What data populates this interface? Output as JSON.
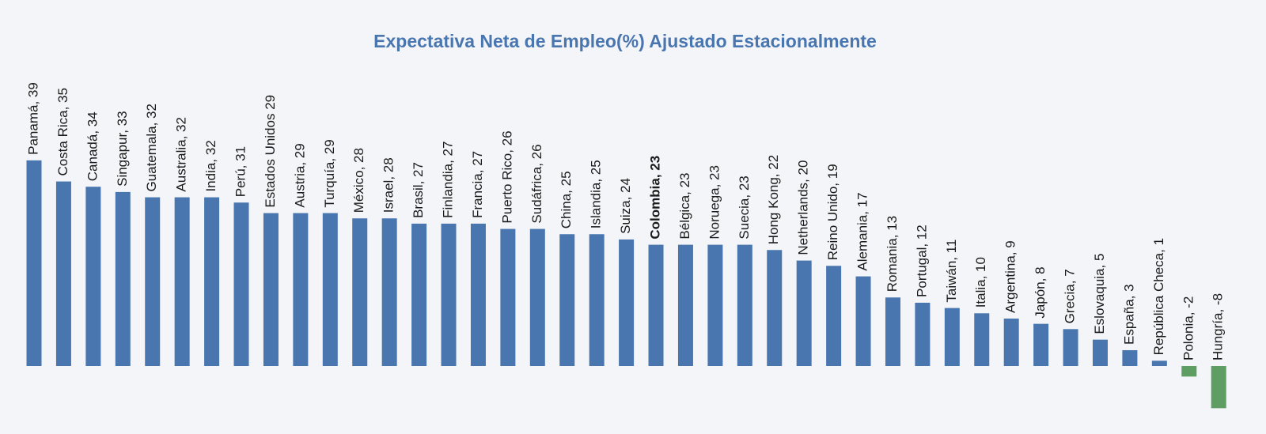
{
  "chart_data": {
    "type": "bar",
    "title": "Expectativa Neta de Empleo(%) Ajustado Estacionalmente",
    "values": [
      39,
      35,
      34,
      33,
      32,
      32,
      32,
      31,
      29,
      29,
      29,
      28,
      28,
      27,
      27,
      27,
      26,
      26,
      25,
      25,
      24,
      23,
      23,
      23,
      23,
      22,
      20,
      19,
      17,
      13,
      12,
      11,
      10,
      9,
      8,
      7,
      5,
      3,
      1,
      -2,
      -8
    ],
    "value_labels": [
      "Panamá, 39",
      "Costa Rica, 35",
      "Canadá, 34",
      "Singapur, 33",
      "Guatemala, 32",
      "Australia, 32",
      "India, 32",
      "Perú, 31",
      "Estados Unidos 29",
      "Austria, 29",
      "Turquía, 29",
      "México, 28",
      "Israel, 28",
      "Brasil, 27",
      "Finlandia, 27",
      "Francia, 27",
      "Puerto Rico, 26",
      "Sudáfrica, 26",
      "China, 25",
      "Islandia, 25",
      "Suiza, 24",
      "Colombia, 23",
      "Bélgica, 23",
      "Noruega, 23",
      "Suecia, 23",
      "Hong Kong, 22",
      "Netherlands, 20",
      "Reino Unido, 19",
      "Alemania, 17",
      "Romania, 13",
      "Portugal, 12",
      "Taiwán, 11",
      "Italia, 10",
      "Argentina, 9",
      "Japón, 8",
      "Grecia, 7",
      "Eslovaquia, 5",
      "España, 3",
      "República Checa, 1",
      "Polonia, -2",
      "Hungría, -8"
    ],
    "color": "#4a76b0",
    "negative_color": "#5f9e62",
    "highlight_index": 21
  }
}
